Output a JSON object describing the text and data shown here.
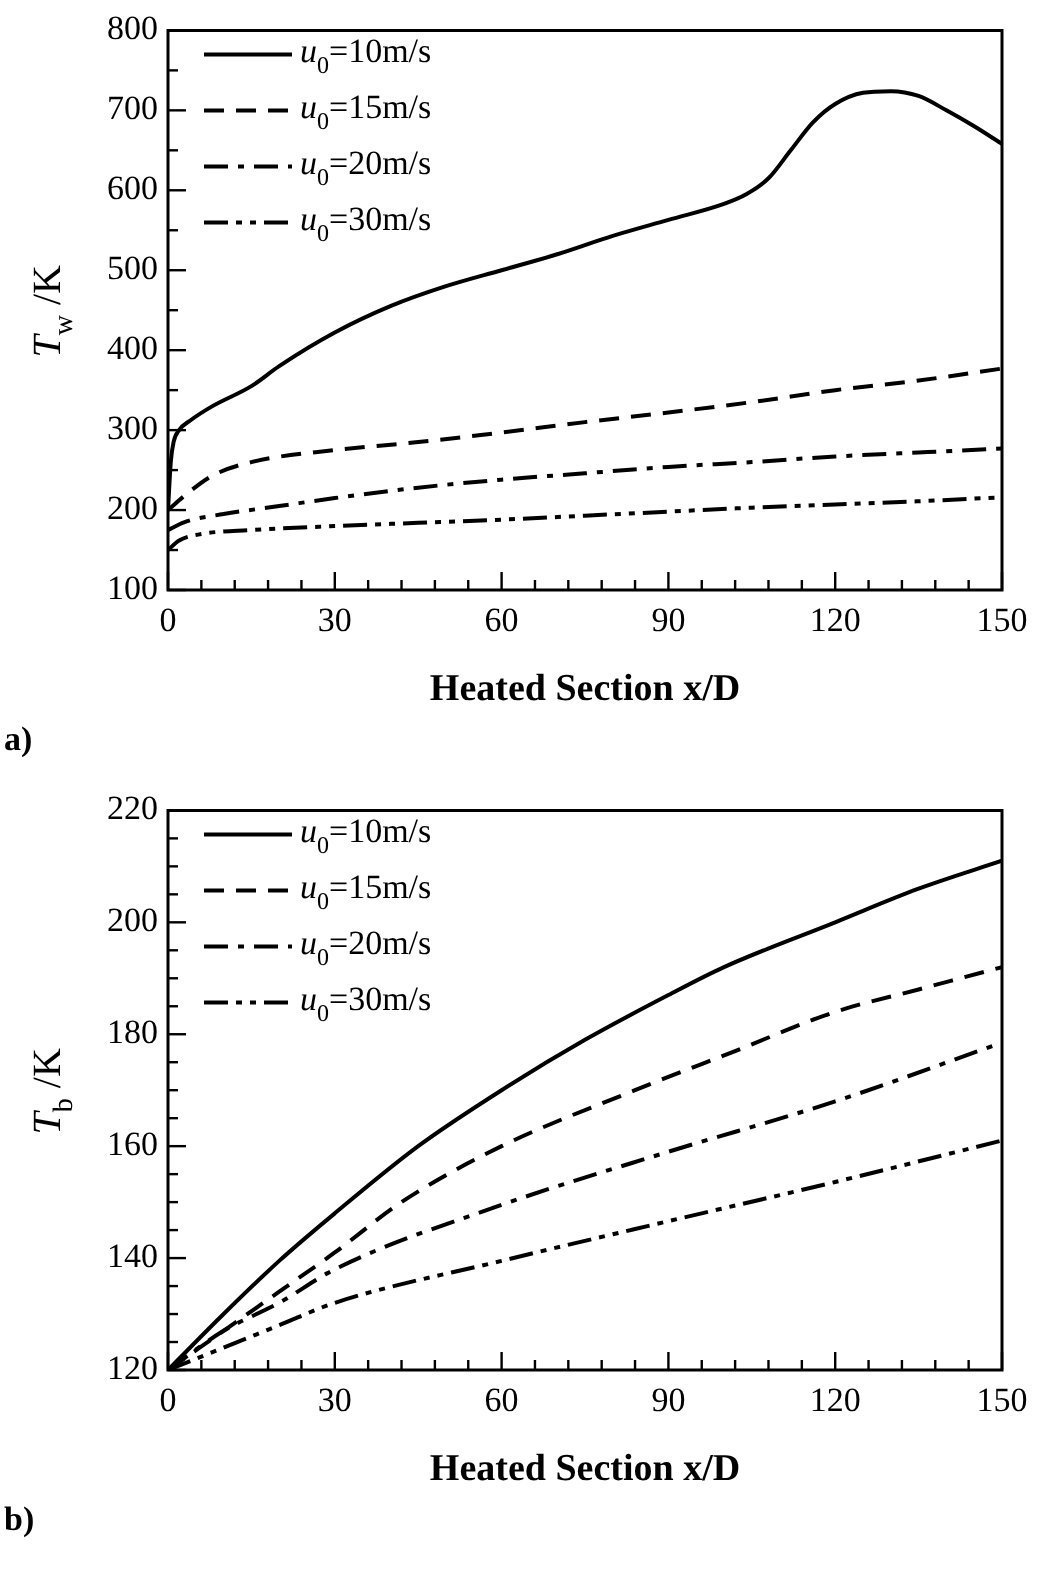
{
  "chart_data": [
    {
      "type": "line",
      "xlabel": "Heated Section x/D",
      "ylabel": "T$_{w}$ /K",
      "annotations": [
        "a)"
      ],
      "legend": "top left",
      "marker": "none",
      "xlim": [
        0,
        150
      ],
      "xticks": [
        0,
        {
          "value": 6,
          "label": null
        },
        {
          "value": 12,
          "label": null
        },
        {
          "value": 18,
          "label": null
        },
        {
          "value": 24,
          "label": null
        },
        30,
        {
          "value": 36,
          "label": null
        },
        {
          "value": 42,
          "label": null
        },
        {
          "value": 48,
          "label": null
        },
        {
          "value": 54,
          "label": null
        },
        60,
        {
          "value": 66,
          "label": null
        },
        {
          "value": 72,
          "label": null
        },
        {
          "value": 78,
          "label": null
        },
        {
          "value": 84,
          "label": null
        },
        90,
        {
          "value": 96,
          "label": null
        },
        {
          "value": 102,
          "label": null
        },
        {
          "value": 108,
          "label": null
        },
        {
          "value": 114,
          "label": null
        },
        120,
        {
          "value": 126,
          "label": null
        },
        {
          "value": 132,
          "label": null
        },
        {
          "value": 138,
          "label": null
        },
        {
          "value": 144,
          "label": null
        },
        150
      ],
      "ylim": [
        100,
        800
      ],
      "yticks": [
        100,
        {
          "value": 150,
          "label": null
        },
        200,
        {
          "value": 250,
          "label": null
        },
        300,
        {
          "value": 350,
          "label": null
        },
        400,
        {
          "value": 450,
          "label": null
        },
        500,
        {
          "value": 550,
          "label": null
        },
        600,
        {
          "value": 650,
          "label": null
        },
        700,
        {
          "value": 750,
          "label": null
        },
        800
      ],
      "series": [
        {
          "name": "u$_{0}$=10m/s",
          "color": "#000000",
          "line_style": "solid",
          "x": [
            0,
            0.5,
            1,
            2,
            4,
            8,
            15,
            20,
            30,
            40,
            50,
            60,
            70,
            80,
            90,
            100,
            104,
            108,
            112,
            116,
            120,
            125,
            130,
            135,
            140,
            145,
            150
          ],
          "values": [
            200,
            260,
            285,
            300,
            312,
            330,
            355,
            380,
            422,
            455,
            480,
            500,
            520,
            543,
            563,
            583,
            595,
            615,
            650,
            685,
            708,
            722,
            724,
            718,
            700,
            680,
            658
          ]
        },
        {
          "name": "u$_{0}$=15m/s",
          "color": "#000000",
          "line_style": "dashed",
          "x": [
            0,
            3,
            8,
            15,
            30,
            45,
            60,
            75,
            90,
            105,
            120,
            135,
            150
          ],
          "values": [
            200,
            218,
            243,
            260,
            275,
            285,
            297,
            310,
            322,
            335,
            350,
            362,
            377
          ]
        },
        {
          "name": "u$_{0}$=20m/s",
          "color": "#000000",
          "line_style": "dashdot",
          "x": [
            0,
            3,
            10,
            20,
            30,
            45,
            60,
            75,
            90,
            105,
            120,
            135,
            150
          ],
          "values": [
            175,
            185,
            195,
            205,
            215,
            228,
            238,
            246,
            254,
            260,
            267,
            272,
            277
          ]
        },
        {
          "name": "u$_{0}$=30m/s",
          "color": "#000000",
          "line_style": "dashdotdot",
          "x": [
            0,
            2,
            6,
            15,
            30,
            45,
            60,
            75,
            90,
            105,
            120,
            135,
            150
          ],
          "values": [
            150,
            162,
            170,
            175,
            180,
            184,
            188,
            193,
            198,
            203,
            207,
            211,
            216
          ]
        }
      ]
    },
    {
      "type": "line",
      "xlabel": "Heated Section x/D",
      "ylabel": "T$_{b}$ /K",
      "annotations": [
        "b)"
      ],
      "legend": "top left",
      "marker": "none",
      "xlim": [
        0,
        150
      ],
      "xticks": [
        0,
        {
          "value": 6,
          "label": null
        },
        {
          "value": 12,
          "label": null
        },
        {
          "value": 18,
          "label": null
        },
        {
          "value": 24,
          "label": null
        },
        30,
        {
          "value": 36,
          "label": null
        },
        {
          "value": 42,
          "label": null
        },
        {
          "value": 48,
          "label": null
        },
        {
          "value": 54,
          "label": null
        },
        60,
        {
          "value": 66,
          "label": null
        },
        {
          "value": 72,
          "label": null
        },
        {
          "value": 78,
          "label": null
        },
        {
          "value": 84,
          "label": null
        },
        90,
        {
          "value": 96,
          "label": null
        },
        {
          "value": 102,
          "label": null
        },
        {
          "value": 108,
          "label": null
        },
        {
          "value": 114,
          "label": null
        },
        120,
        {
          "value": 126,
          "label": null
        },
        {
          "value": 132,
          "label": null
        },
        {
          "value": 138,
          "label": null
        },
        {
          "value": 144,
          "label": null
        },
        150
      ],
      "ylim": [
        120,
        220
      ],
      "yticks": [
        120,
        {
          "value": 125,
          "label": null
        },
        {
          "value": 130,
          "label": null
        },
        {
          "value": 135,
          "label": null
        },
        140,
        {
          "value": 145,
          "label": null
        },
        {
          "value": 150,
          "label": null
        },
        {
          "value": 155,
          "label": null
        },
        160,
        {
          "value": 165,
          "label": null
        },
        {
          "value": 170,
          "label": null
        },
        {
          "value": 175,
          "label": null
        },
        180,
        {
          "value": 185,
          "label": null
        },
        {
          "value": 190,
          "label": null
        },
        {
          "value": 195,
          "label": null
        },
        200,
        {
          "value": 205,
          "label": null
        },
        {
          "value": 210,
          "label": null
        },
        {
          "value": 215,
          "label": null
        },
        220
      ],
      "series": [
        {
          "name": "u$_{0}$=10m/s",
          "color": "#000000",
          "line_style": "solid",
          "x": [
            0,
            10,
            20,
            30,
            45,
            60,
            75,
            90,
            100,
            120,
            135,
            150
          ],
          "values": [
            120,
            130,
            139.5,
            148,
            160,
            170,
            179,
            187,
            192,
            200,
            206,
            211
          ]
        },
        {
          "name": "u$_{0}$=15m/s",
          "color": "#000000",
          "line_style": "dashed",
          "x": [
            0,
            10,
            20,
            30,
            42,
            60,
            84,
            102,
            120,
            135,
            150
          ],
          "values": [
            120,
            127,
            134,
            141,
            150,
            160,
            170,
            177,
            184,
            188,
            192
          ]
        },
        {
          "name": "u$_{0}$=20m/s",
          "color": "#000000",
          "line_style": "dashdot",
          "x": [
            0,
            10,
            20,
            30,
            60,
            90,
            120,
            150
          ],
          "values": [
            120,
            127,
            132,
            138,
            149.5,
            159,
            168,
            178.5
          ]
        },
        {
          "name": "u$_{0}$=30m/s",
          "color": "#000000",
          "line_style": "dashdotdot",
          "x": [
            0,
            10,
            20,
            30,
            60,
            90,
            120,
            150
          ],
          "values": [
            120,
            124,
            128,
            132,
            139.5,
            146.6,
            153.6,
            161
          ]
        }
      ]
    }
  ]
}
